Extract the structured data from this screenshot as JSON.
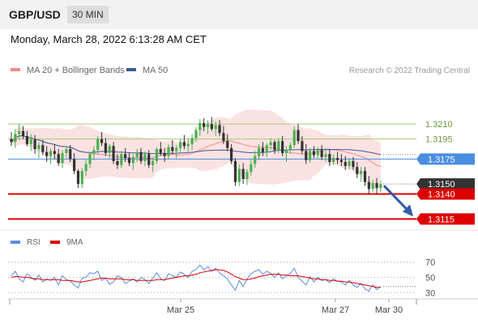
{
  "header": {
    "symbol": "GBP/USD",
    "timeframe": "30 MIN"
  },
  "timestamp": "Monday, March 28, 2022 6:13:28 AM CET",
  "copyright": "Research © 2022 Trading Central",
  "colors": {
    "bollinger": "#f08a8a",
    "ma50": "#3a5a9a",
    "resistance": "#a8cc7a",
    "pivot": "#4a8ee0",
    "support": "#dd0000",
    "arrow": "#2f5da8",
    "rsi": "#5a8de0",
    "rsi_ma": "#dd0000"
  },
  "chart_data": [
    {
      "type": "candlestick",
      "legend": [
        {
          "name": "MA 20 + Bollinger Bands",
          "color": "#f08a8a"
        },
        {
          "name": "MA 50",
          "color": "#3a5a9a"
        }
      ],
      "legend_position": "top-left",
      "x_tick_labels": [
        "Mar 25",
        "Mar 27",
        "Mar 30"
      ],
      "ylim": [
        1.3095,
        1.3245
      ],
      "levels": [
        {
          "value": 1.321,
          "label": "1.3210",
          "kind": "resistance"
        },
        {
          "value": 1.3195,
          "label": "1.3195",
          "kind": "resistance"
        },
        {
          "value": 1.3175,
          "label": "1.3175",
          "kind": "pivot"
        },
        {
          "value": 1.315,
          "label": "1.3150",
          "kind": "last"
        },
        {
          "value": 1.314,
          "label": "1.3140",
          "kind": "support"
        },
        {
          "value": 1.3115,
          "label": "1.3115",
          "kind": "support"
        }
      ],
      "projection": {
        "from": 1.315,
        "to": 1.3115
      },
      "candles": [
        [
          1.3195,
          1.3202,
          1.3188,
          1.3192
        ],
        [
          1.3192,
          1.3205,
          1.3186,
          1.32
        ],
        [
          1.32,
          1.321,
          1.3194,
          1.3203
        ],
        [
          1.3203,
          1.3208,
          1.3195,
          1.3198
        ],
        [
          1.3198,
          1.3203,
          1.3188,
          1.319
        ],
        [
          1.319,
          1.32,
          1.3183,
          1.3195
        ],
        [
          1.3195,
          1.3199,
          1.318,
          1.3185
        ],
        [
          1.3185,
          1.3192,
          1.3176,
          1.3189
        ],
        [
          1.3189,
          1.3194,
          1.3179,
          1.3182
        ],
        [
          1.3182,
          1.3188,
          1.3172,
          1.3178
        ],
        [
          1.3178,
          1.3186,
          1.317,
          1.3183
        ],
        [
          1.3183,
          1.319,
          1.3175,
          1.318
        ],
        [
          1.318,
          1.3185,
          1.3168,
          1.3171
        ],
        [
          1.3171,
          1.3184,
          1.3166,
          1.3181
        ],
        [
          1.3181,
          1.3188,
          1.3176,
          1.3185
        ],
        [
          1.3185,
          1.3189,
          1.3172,
          1.3175
        ],
        [
          1.3175,
          1.3181,
          1.316,
          1.3163
        ],
        [
          1.3163,
          1.3165,
          1.3146,
          1.315
        ],
        [
          1.315,
          1.3166,
          1.3146,
          1.3163
        ],
        [
          1.3163,
          1.3174,
          1.3158,
          1.317
        ],
        [
          1.317,
          1.3182,
          1.3166,
          1.318
        ],
        [
          1.318,
          1.3188,
          1.3174,
          1.3184
        ],
        [
          1.3184,
          1.3198,
          1.318,
          1.3195
        ],
        [
          1.3195,
          1.3202,
          1.3188,
          1.3191
        ],
        [
          1.3191,
          1.3196,
          1.3178,
          1.3181
        ],
        [
          1.3181,
          1.319,
          1.3176,
          1.3188
        ],
        [
          1.3188,
          1.3192,
          1.317,
          1.3173
        ],
        [
          1.3173,
          1.318,
          1.3165,
          1.3169
        ],
        [
          1.3169,
          1.3183,
          1.3166,
          1.318
        ],
        [
          1.318,
          1.3186,
          1.3172,
          1.3176
        ],
        [
          1.3176,
          1.3181,
          1.3168,
          1.3171
        ],
        [
          1.3171,
          1.318,
          1.3164,
          1.3177
        ],
        [
          1.3177,
          1.3185,
          1.3172,
          1.3182
        ],
        [
          1.3182,
          1.3186,
          1.317,
          1.3173
        ],
        [
          1.3173,
          1.3183,
          1.3168,
          1.318
        ],
        [
          1.318,
          1.3184,
          1.3166,
          1.3169
        ],
        [
          1.3169,
          1.3176,
          1.3162,
          1.3173
        ],
        [
          1.3173,
          1.3187,
          1.317,
          1.3185
        ],
        [
          1.3185,
          1.3192,
          1.3178,
          1.3181
        ],
        [
          1.3181,
          1.3186,
          1.3172,
          1.3178
        ],
        [
          1.3178,
          1.319,
          1.3175,
          1.3187
        ],
        [
          1.3187,
          1.3194,
          1.318,
          1.3183
        ],
        [
          1.3183,
          1.3189,
          1.3176,
          1.3186
        ],
        [
          1.3186,
          1.3195,
          1.3182,
          1.3192
        ],
        [
          1.3192,
          1.3199,
          1.3185,
          1.3188
        ],
        [
          1.3188,
          1.3196,
          1.3182,
          1.319
        ],
        [
          1.319,
          1.32,
          1.3184,
          1.3196
        ],
        [
          1.3196,
          1.3207,
          1.3192,
          1.3204
        ],
        [
          1.3204,
          1.3215,
          1.3198,
          1.3211
        ],
        [
          1.3211,
          1.3216,
          1.3203,
          1.3207
        ],
        [
          1.3207,
          1.3214,
          1.32,
          1.321
        ],
        [
          1.321,
          1.3217,
          1.3203,
          1.3205
        ],
        [
          1.3205,
          1.3213,
          1.3198,
          1.3209
        ],
        [
          1.3209,
          1.3214,
          1.3198,
          1.3201
        ],
        [
          1.3201,
          1.3208,
          1.319,
          1.3193
        ],
        [
          1.3193,
          1.32,
          1.3183,
          1.3186
        ],
        [
          1.3186,
          1.319,
          1.317,
          1.3173
        ],
        [
          1.3173,
          1.3176,
          1.3148,
          1.3152
        ],
        [
          1.3152,
          1.317,
          1.3148,
          1.3165
        ],
        [
          1.3165,
          1.3171,
          1.315,
          1.3155
        ],
        [
          1.3155,
          1.3165,
          1.3149,
          1.3162
        ],
        [
          1.3162,
          1.3175,
          1.3158,
          1.317
        ],
        [
          1.317,
          1.3183,
          1.3166,
          1.3178
        ],
        [
          1.3178,
          1.319,
          1.3174,
          1.3186
        ],
        [
          1.3186,
          1.3192,
          1.3178,
          1.3182
        ],
        [
          1.3182,
          1.3191,
          1.3177,
          1.3189
        ],
        [
          1.3189,
          1.3196,
          1.3184,
          1.3192
        ],
        [
          1.3192,
          1.3194,
          1.318,
          1.3184
        ],
        [
          1.3184,
          1.3196,
          1.3181,
          1.3193
        ],
        [
          1.3193,
          1.3198,
          1.3178,
          1.3181
        ],
        [
          1.3181,
          1.3188,
          1.3172,
          1.3184
        ],
        [
          1.3184,
          1.3192,
          1.318,
          1.3189
        ],
        [
          1.3189,
          1.3208,
          1.3186,
          1.3204
        ],
        [
          1.3204,
          1.321,
          1.319,
          1.3193
        ],
        [
          1.3193,
          1.3198,
          1.318,
          1.3183
        ],
        [
          1.3183,
          1.319,
          1.317,
          1.3174
        ],
        [
          1.3174,
          1.3186,
          1.3171,
          1.3183
        ],
        [
          1.3183,
          1.3188,
          1.3176,
          1.3179
        ],
        [
          1.3179,
          1.3187,
          1.3175,
          1.3184
        ],
        [
          1.3184,
          1.3189,
          1.3174,
          1.3177
        ],
        [
          1.3177,
          1.3185,
          1.3172,
          1.318
        ],
        [
          1.318,
          1.3185,
          1.3168,
          1.3172
        ],
        [
          1.3172,
          1.318,
          1.3169,
          1.3176
        ],
        [
          1.3176,
          1.3182,
          1.317,
          1.3174
        ],
        [
          1.3174,
          1.318,
          1.3168,
          1.3172
        ],
        [
          1.3172,
          1.3178,
          1.3164,
          1.3168
        ],
        [
          1.3168,
          1.3176,
          1.3165,
          1.3173
        ],
        [
          1.3173,
          1.3177,
          1.3164,
          1.3167
        ],
        [
          1.3167,
          1.3172,
          1.3156,
          1.316
        ],
        [
          1.316,
          1.3167,
          1.3152,
          1.3163
        ],
        [
          1.3163,
          1.3167,
          1.3148,
          1.3152
        ],
        [
          1.3152,
          1.3158,
          1.314,
          1.3145
        ],
        [
          1.3145,
          1.3154,
          1.3142,
          1.3151
        ],
        [
          1.3151,
          1.3156,
          1.314,
          1.3146
        ],
        [
          1.3146,
          1.3153,
          1.3142,
          1.315
        ]
      ]
    },
    {
      "type": "line",
      "legend": [
        {
          "name": "RSI",
          "color": "#5a8de0"
        },
        {
          "name": "9MA",
          "color": "#dd0000"
        }
      ],
      "y_ticks": [
        70,
        50,
        30
      ],
      "ylim": [
        25,
        78
      ],
      "series": [
        {
          "name": "RSI",
          "values": [
            52,
            58,
            48,
            44,
            55,
            50,
            46,
            53,
            44,
            48,
            46,
            50,
            40,
            52,
            47,
            45,
            40,
            36,
            49,
            50,
            56,
            55,
            58,
            46,
            49,
            41,
            44,
            52,
            50,
            42,
            45,
            48,
            44,
            50,
            47,
            42,
            49,
            56,
            48,
            46,
            55,
            52,
            50,
            57,
            54,
            50,
            58,
            60,
            66,
            60,
            64,
            58,
            62,
            56,
            52,
            48,
            40,
            33,
            46,
            38,
            48,
            55,
            58,
            60,
            54,
            58,
            55,
            50,
            56,
            48,
            52,
            55,
            62,
            50,
            45,
            40,
            51,
            44,
            50,
            46,
            47,
            43,
            48,
            45,
            44,
            40,
            46,
            40,
            37,
            42,
            35,
            32,
            40,
            34,
            38
          ]
        },
        {
          "name": "9MA",
          "values": [
            50,
            51,
            51,
            50,
            50,
            49,
            48,
            48,
            47,
            47,
            47,
            47,
            47,
            46,
            46,
            46,
            45,
            44,
            44,
            45,
            46,
            47,
            48,
            49,
            49,
            48,
            48,
            48,
            48,
            47,
            47,
            47,
            46,
            46,
            46,
            46,
            46,
            47,
            47,
            47,
            48,
            49,
            50,
            51,
            52,
            52,
            53,
            54,
            56,
            57,
            58,
            59,
            60,
            60,
            59,
            57,
            54,
            51,
            49,
            47,
            47,
            48,
            49,
            51,
            52,
            53,
            54,
            54,
            54,
            53,
            53,
            52,
            52,
            52,
            51,
            50,
            49,
            48,
            48,
            47,
            47,
            46,
            46,
            45,
            45,
            44,
            44,
            43,
            42,
            41,
            40,
            39,
            38,
            37,
            37
          ]
        }
      ]
    }
  ]
}
